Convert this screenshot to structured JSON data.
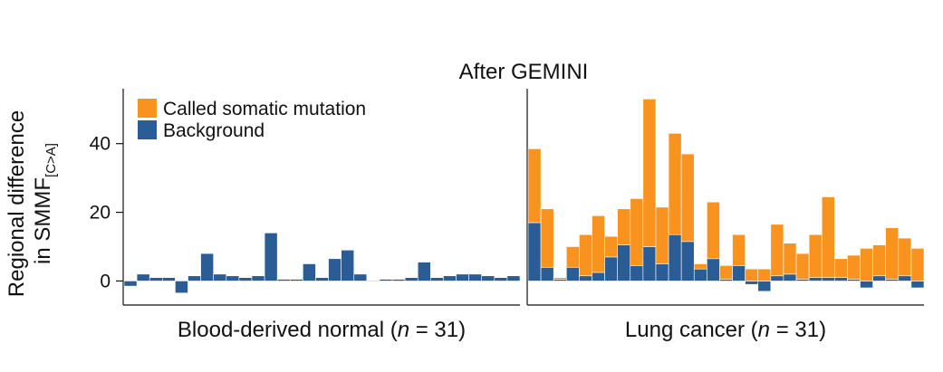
{
  "chart_data": {
    "type": "bar",
    "stacked": true,
    "title": "After GEMINI",
    "ylabel_line1": "Regional difference",
    "ylabel_line2_main": "in SMMF",
    "ylabel_line2_sub": "[C>A]",
    "ylim": [
      -7,
      56
    ],
    "yticks": [
      0,
      20,
      40
    ],
    "ytick_labels": [
      "0",
      "20",
      "40"
    ],
    "grid": false,
    "legend_position": "top-left",
    "legend": [
      {
        "label": "Called somatic mutation",
        "color": "#F7931E"
      },
      {
        "label": "Background",
        "color": "#2A5D96"
      }
    ],
    "panels": [
      {
        "xlabel_pre": "Blood-derived normal (",
        "xlabel_n": "n",
        "xlabel_post": " = 31)",
        "series": [
          {
            "name": "Background",
            "values": [
              -1.5,
              2,
              1,
              1,
              -3.5,
              1.5,
              8,
              2,
              1.5,
              1,
              1.5,
              14,
              0.5,
              0.5,
              5,
              1,
              6.5,
              9,
              2,
              0,
              0.5,
              0.5,
              1,
              5.5,
              1,
              1.5,
              2,
              2,
              1.5,
              1,
              1.5
            ]
          },
          {
            "name": "Called somatic mutation",
            "values": [
              0,
              0,
              0,
              0,
              0,
              0,
              0,
              0,
              0,
              0,
              0,
              0,
              0,
              0,
              0,
              0,
              0,
              0,
              0,
              0,
              0,
              0,
              0,
              0,
              0,
              0,
              0,
              0,
              0,
              0,
              0
            ]
          }
        ]
      },
      {
        "xlabel_pre": "Lung cancer (",
        "xlabel_n": "n",
        "xlabel_post": " = 31)",
        "series": [
          {
            "name": "Background",
            "values": [
              17,
              4,
              0.5,
              4,
              1.5,
              2.5,
              7,
              10.5,
              4.5,
              10,
              5,
              13.5,
              11.5,
              3.5,
              6.5,
              0.5,
              4.5,
              -1,
              -3,
              1.5,
              2,
              0.5,
              1,
              1,
              1,
              0.5,
              -2,
              1.5,
              0.5,
              1.5,
              -2
            ]
          },
          {
            "name": "Called somatic mutation",
            "values": [
              21.5,
              17,
              0.5,
              6,
              12,
              16.5,
              6,
              10.5,
              19.5,
              43,
              16.5,
              29.5,
              25.5,
              1.5,
              16.5,
              4,
              9,
              3.5,
              3.5,
              15,
              9,
              7.5,
              12.5,
              23.5,
              5.5,
              7,
              9.5,
              9,
              15,
              11,
              9.5
            ]
          }
        ]
      }
    ]
  }
}
